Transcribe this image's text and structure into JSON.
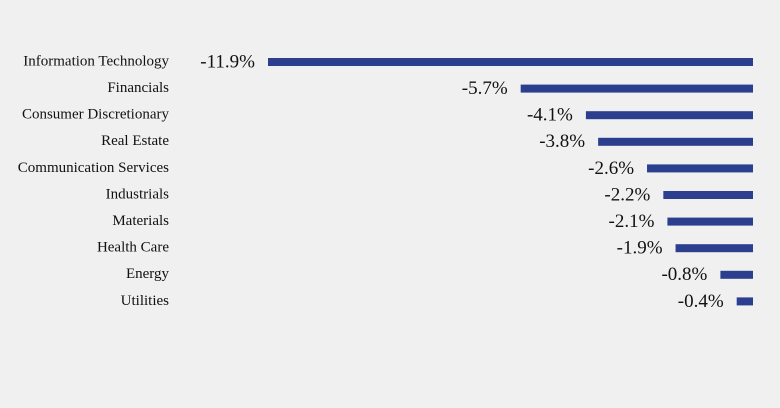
{
  "chart_data": {
    "type": "bar",
    "orientation": "horizontal",
    "categories": [
      "Information Technology",
      "Financials",
      "Consumer Discretionary",
      "Real Estate",
      "Communication Services",
      "Industrials",
      "Materials",
      "Health Care",
      "Energy",
      "Utilities"
    ],
    "values": [
      -11.9,
      -5.7,
      -4.1,
      -3.8,
      -2.6,
      -2.2,
      -2.1,
      -1.9,
      -0.8,
      -0.4
    ],
    "value_labels": [
      "-11.9%",
      "-5.7%",
      "-4.1%",
      "-3.8%",
      "-2.6%",
      "-2.2%",
      "-2.1%",
      "-1.9%",
      "-0.8%",
      "-0.4%"
    ],
    "color": "#2b3f8e"
  }
}
